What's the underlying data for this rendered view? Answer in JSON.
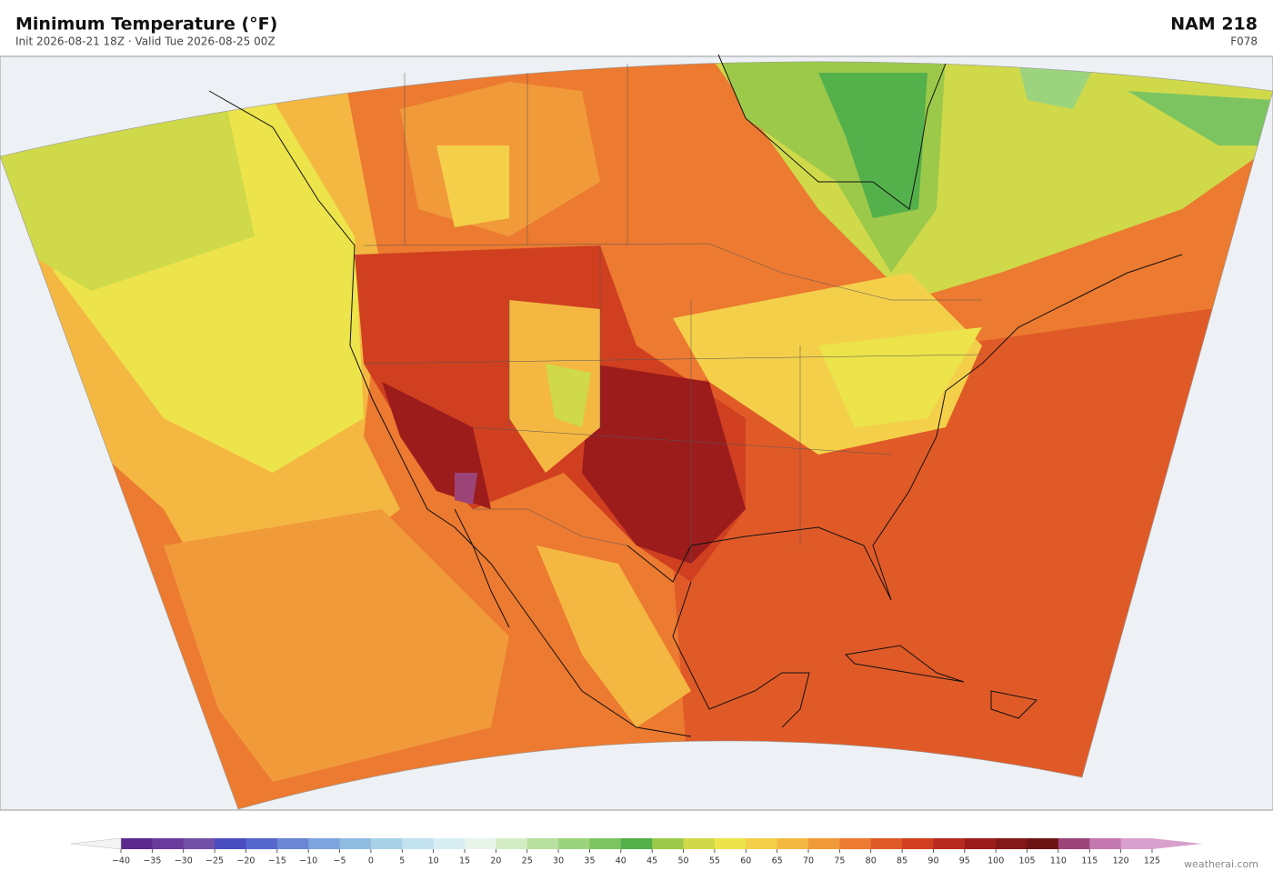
{
  "header": {
    "title": "Minimum Temperature  (°F)",
    "subtitle": "Init 2026-08-21 18Z  ·  Valid Tue 2026-08-25 00Z",
    "model": "NAM  218",
    "forecast_hour": "F078"
  },
  "colorbar": {
    "lim": [
      -40,
      125
    ],
    "ticks": [
      {
        "value": -40,
        "label": "−40"
      },
      {
        "value": -35,
        "label": "−35"
      },
      {
        "value": -30,
        "label": "−30"
      },
      {
        "value": -25,
        "label": "−25"
      },
      {
        "value": -20,
        "label": "−20"
      },
      {
        "value": -15,
        "label": "−15"
      },
      {
        "value": -10,
        "label": "−10"
      },
      {
        "value": -5,
        "label": "−5"
      },
      0,
      5,
      10,
      15,
      20,
      25,
      30,
      35,
      40,
      45,
      50,
      55,
      60,
      65,
      70,
      75,
      80,
      85,
      90,
      95,
      100,
      105,
      110,
      115,
      120,
      125
    ],
    "colors": [
      "#5b2a8c",
      "#6a3b9c",
      "#7350a8",
      "#4a4dbf",
      "#5566cc",
      "#6a86d4",
      "#7fa3dc",
      "#8fbbe0",
      "#a9d2e8",
      "#c2e2ee",
      "#d8eef2",
      "#e8f4ea",
      "#d4ecc4",
      "#b8e0a0",
      "#9cd47e",
      "#7cc460",
      "#54b04a",
      "#9cc94a",
      "#cfd94a",
      "#ece44a",
      "#f4d04a",
      "#f4b842",
      "#f09a3a",
      "#ec7a30",
      "#e05a28",
      "#d04020",
      "#b82a20",
      "#9c1c1c",
      "#841818",
      "#6c1414",
      "#9c4478",
      "#c478b0",
      "#d8a0cc"
    ],
    "under_color": "#f4f4f4",
    "over_color": "#d8a0cc"
  },
  "watermark": "weatherai.com"
}
